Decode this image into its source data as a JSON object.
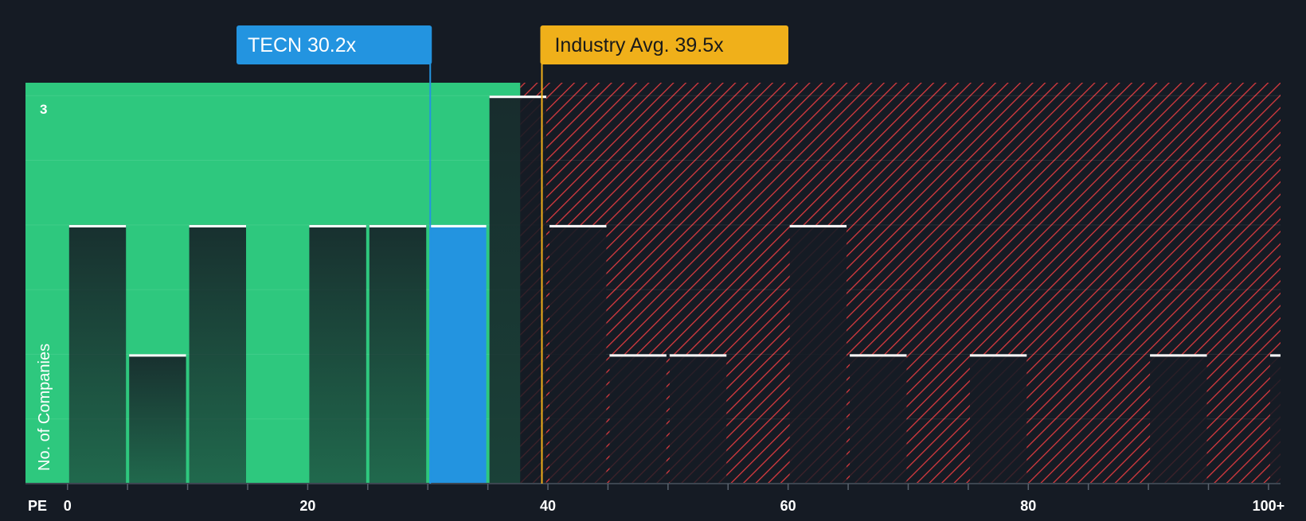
{
  "chart_data": {
    "type": "bar",
    "xlabel": "PE",
    "ylabel": "No. of Companies",
    "bin_width": 5,
    "x_ticks": [
      {
        "value": 0,
        "label": "0"
      },
      {
        "value": 20,
        "label": "20"
      },
      {
        "value": 40,
        "label": "40"
      },
      {
        "value": 60,
        "label": "60"
      },
      {
        "value": 80,
        "label": "80"
      },
      {
        "value": 100,
        "label": "100+"
      }
    ],
    "y_tick_labels": [
      {
        "value": 3,
        "label": "3"
      }
    ],
    "xlim": [
      -3.5,
      101
    ],
    "ylim": [
      0,
      3.1
    ],
    "bins": [
      {
        "x": 0,
        "value": 2
      },
      {
        "x": 5,
        "value": 1
      },
      {
        "x": 10,
        "value": 2
      },
      {
        "x": 20,
        "value": 2
      },
      {
        "x": 25,
        "value": 2
      },
      {
        "x": 30,
        "value": 2,
        "highlight": true
      },
      {
        "x": 35,
        "value": 3
      },
      {
        "x": 40,
        "value": 2
      },
      {
        "x": 45,
        "value": 1
      },
      {
        "x": 50,
        "value": 1
      },
      {
        "x": 60,
        "value": 2
      },
      {
        "x": 65,
        "value": 1
      },
      {
        "x": 75,
        "value": 1
      },
      {
        "x": 90,
        "value": 1
      },
      {
        "x": 100,
        "value": 1
      }
    ],
    "company": {
      "label": "TECN 30.2x",
      "value": 30.2
    },
    "industry_avg": {
      "label": "Industry Avg. 39.5x",
      "value": 39.5
    },
    "fair_region_end": 37.7,
    "colors": {
      "background": "#151b24",
      "fair_region": "#2ec87e",
      "overvalued_region": "#d93a3f",
      "bar": "#1c2b35",
      "company_bar": "#2394e0",
      "industry_marker": "#f0b01a",
      "bar_cap": "#ffffff"
    }
  }
}
